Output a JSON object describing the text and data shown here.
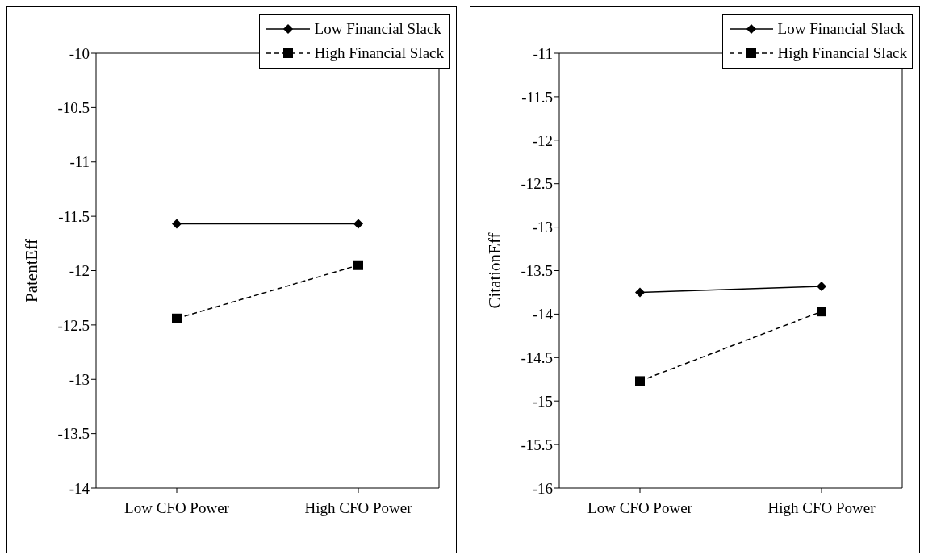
{
  "chart_data": [
    {
      "type": "line",
      "ylabel": "PatentEff",
      "categories": [
        "Low CFO Power",
        "High CFO Power"
      ],
      "ylim": [
        -14,
        -10
      ],
      "yticks": [
        -14,
        -13.5,
        -13,
        -12.5,
        -12,
        -11.5,
        -11,
        -10.5,
        -10
      ],
      "grid": false,
      "legend": "top right",
      "series": [
        {
          "name": "Low Financial Slack",
          "color": "#000000",
          "values": [
            -11.57,
            -11.57
          ],
          "marker": "diamond",
          "line_style": "solid"
        },
        {
          "name": "High Financial Slack",
          "color": "#000000",
          "values": [
            -12.44,
            -11.95
          ],
          "marker": "square",
          "line_style": "dashed"
        }
      ]
    },
    {
      "type": "line",
      "ylabel": "CitationEff",
      "categories": [
        "Low CFO Power",
        "High CFO Power"
      ],
      "ylim": [
        -16,
        -11
      ],
      "yticks": [
        -16,
        -15.5,
        -15,
        -14.5,
        -14,
        -13.5,
        -13,
        -12.5,
        -12,
        -11.5,
        -11
      ],
      "grid": false,
      "legend": "top right",
      "series": [
        {
          "name": "Low Financial Slack",
          "color": "#000000",
          "values": [
            -13.75,
            -13.68
          ],
          "marker": "diamond",
          "line_style": "solid"
        },
        {
          "name": "High Financial Slack",
          "color": "#000000",
          "values": [
            -14.77,
            -13.97
          ],
          "marker": "square",
          "line_style": "dashed"
        }
      ]
    }
  ]
}
